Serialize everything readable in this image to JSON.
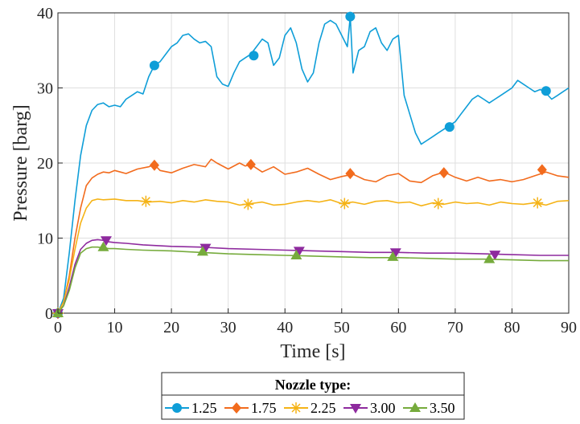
{
  "chart_data": {
    "type": "line",
    "xlabel": "Time [s]",
    "ylabel": "Pressure [barg]",
    "xlim": [
      0,
      90
    ],
    "ylim": [
      0,
      40
    ],
    "x_ticks": [
      0,
      10,
      20,
      30,
      40,
      50,
      60,
      70,
      80,
      90
    ],
    "y_ticks": [
      0,
      10,
      20,
      30,
      40
    ],
    "grid": true,
    "legend": {
      "title": "Nozzle type:",
      "placement": "bottom-center",
      "orientation": "horizontal"
    },
    "series": [
      {
        "name": "1.25",
        "color": "#0f9ed8",
        "marker": "circle",
        "x": [
          0,
          1,
          2,
          3,
          4,
          5,
          6,
          7,
          8,
          9,
          10,
          11,
          12,
          13,
          14,
          15,
          16,
          17,
          18,
          19,
          20,
          21,
          22,
          23,
          24,
          25,
          26,
          27,
          28,
          29,
          30,
          31,
          32,
          33,
          34,
          35,
          36,
          37,
          38,
          39,
          40,
          41,
          42,
          43,
          44,
          45,
          46,
          47,
          48,
          49,
          50,
          51,
          51.5,
          52,
          53,
          54,
          55,
          56,
          57,
          58,
          59,
          60,
          61,
          62,
          63,
          64,
          65,
          66,
          67,
          68,
          69,
          70,
          71,
          72,
          73,
          74,
          75,
          76,
          77,
          78,
          79,
          80,
          81,
          82,
          83,
          84,
          85,
          86,
          87,
          88,
          89,
          90
        ],
        "y": [
          0,
          2,
          8,
          15,
          21,
          25,
          27,
          27.8,
          28,
          27.5,
          27.7,
          27.5,
          28.5,
          29,
          29.5,
          29.2,
          31.5,
          33,
          33.5,
          34.5,
          35.5,
          36,
          37,
          37.2,
          36.5,
          36,
          36.2,
          35.5,
          31.5,
          30.5,
          30.2,
          32,
          33.5,
          34,
          34.5,
          35.5,
          36.5,
          36,
          33,
          34,
          37,
          38,
          36,
          32.5,
          30.8,
          32,
          36,
          38.5,
          39,
          38.5,
          37,
          35.5,
          39.5,
          32,
          35,
          35.5,
          37.5,
          38,
          36,
          35,
          36.5,
          37,
          29,
          26.5,
          24,
          22.5,
          23,
          23.5,
          24,
          24.5,
          25,
          25.5,
          26.5,
          27.5,
          28.5,
          29,
          28.5,
          28,
          28.5,
          29,
          29.5,
          30,
          31,
          30.5,
          30,
          29.5,
          29.8,
          29.3,
          28.5,
          29,
          29.5,
          30
        ],
        "markers_x": [
          0,
          17,
          34.5,
          51.5,
          69,
          86
        ],
        "markers_y": [
          0,
          33,
          34.3,
          39.5,
          24.8,
          29.6
        ]
      },
      {
        "name": "1.75",
        "color": "#f26b1d",
        "marker": "diamond",
        "x": [
          0,
          1,
          2,
          3,
          4,
          5,
          6,
          7,
          8,
          9,
          10,
          11,
          12,
          14,
          16,
          17,
          18,
          20,
          22,
          24,
          26,
          27,
          28,
          30,
          32,
          33,
          34,
          36,
          38,
          40,
          42,
          44,
          46,
          48,
          50,
          52,
          54,
          56,
          58,
          60,
          62,
          64,
          66,
          68,
          70,
          72,
          74,
          76,
          78,
          80,
          82,
          84,
          86,
          88,
          90
        ],
        "y": [
          0,
          1.5,
          5,
          10,
          14,
          17,
          18,
          18.5,
          18.8,
          18.7,
          19,
          18.8,
          18.6,
          19.2,
          19.5,
          19.8,
          19,
          18.7,
          19.3,
          19.8,
          19.5,
          20.5,
          20,
          19.2,
          20,
          19.6,
          19.8,
          18.8,
          19.5,
          18.5,
          18.8,
          19.3,
          18.5,
          17.8,
          18.2,
          18.5,
          17.8,
          17.5,
          18.3,
          18.6,
          17.6,
          17.4,
          18.3,
          18.8,
          18.1,
          17.6,
          18.1,
          17.6,
          17.8,
          17.5,
          17.8,
          18.3,
          18.8,
          18.3,
          18.1
        ],
        "markers_x": [
          0,
          17,
          34,
          51.5,
          68,
          85.3
        ],
        "markers_y": [
          0,
          19.7,
          19.8,
          18.6,
          18.7,
          19.1
        ]
      },
      {
        "name": "2.25",
        "color": "#f5b316",
        "marker": "star",
        "x": [
          0,
          1,
          2,
          3,
          4,
          5,
          6,
          7,
          8,
          10,
          12,
          14,
          16,
          18,
          20,
          22,
          24,
          26,
          28,
          30,
          32,
          34,
          36,
          38,
          40,
          42,
          44,
          46,
          48,
          50,
          52,
          54,
          56,
          58,
          60,
          62,
          64,
          66,
          68,
          70,
          72,
          74,
          76,
          78,
          80,
          82,
          84,
          86,
          88,
          90
        ],
        "y": [
          0,
          1.5,
          4.5,
          8.5,
          12,
          14,
          15,
          15.2,
          15.1,
          15.2,
          15,
          15,
          14.8,
          14.9,
          14.7,
          15,
          14.8,
          15.1,
          14.9,
          14.8,
          14.4,
          14.6,
          14.8,
          14.4,
          14.5,
          14.8,
          15,
          14.8,
          15.1,
          14.6,
          14.8,
          14.5,
          14.9,
          15,
          14.7,
          14.8,
          14.3,
          14.7,
          14.5,
          14.8,
          14.6,
          14.7,
          14.4,
          14.8,
          14.6,
          14.5,
          14.7,
          14.4,
          14.9,
          15
        ],
        "markers_x": [
          0,
          15.5,
          33.5,
          50.5,
          67,
          84.5
        ],
        "markers_y": [
          0,
          14.9,
          14.5,
          14.6,
          14.6,
          14.7
        ]
      },
      {
        "name": "3.00",
        "color": "#8e2a9e",
        "marker": "triangle-down",
        "x": [
          0,
          1,
          2,
          3,
          4,
          5,
          6,
          7,
          8,
          9,
          10,
          12,
          15,
          20,
          25,
          30,
          35,
          40,
          45,
          50,
          55,
          60,
          65,
          70,
          75,
          80,
          85,
          90
        ],
        "y": [
          0,
          1,
          3.5,
          6.5,
          8.5,
          9.3,
          9.7,
          9.8,
          9.7,
          9.5,
          9.4,
          9.3,
          9.1,
          8.9,
          8.8,
          8.6,
          8.5,
          8.4,
          8.3,
          8.2,
          8.1,
          8.1,
          8,
          8,
          7.9,
          7.8,
          7.7,
          7.7
        ],
        "markers_x": [
          0,
          8.5,
          26,
          42.5,
          59.5,
          77
        ],
        "markers_y": [
          0,
          9.7,
          8.7,
          8.3,
          8.1,
          7.8
        ]
      },
      {
        "name": "3.50",
        "color": "#76ab3c",
        "marker": "triangle-up",
        "x": [
          0,
          1,
          2,
          3,
          4,
          5,
          6,
          7,
          8,
          9,
          10,
          12,
          15,
          20,
          25,
          30,
          35,
          40,
          45,
          50,
          55,
          60,
          65,
          70,
          75,
          80,
          85,
          90
        ],
        "y": [
          0,
          1,
          3,
          6,
          8,
          8.6,
          8.8,
          8.8,
          8.7,
          8.6,
          8.6,
          8.5,
          8.4,
          8.3,
          8.1,
          7.9,
          7.8,
          7.7,
          7.6,
          7.5,
          7.4,
          7.4,
          7.3,
          7.2,
          7.2,
          7.1,
          7,
          7
        ],
        "markers_x": [
          0,
          8,
          25.5,
          42,
          59,
          76
        ],
        "markers_y": [
          0,
          8.8,
          8.2,
          7.7,
          7.5,
          7.2
        ]
      }
    ]
  }
}
